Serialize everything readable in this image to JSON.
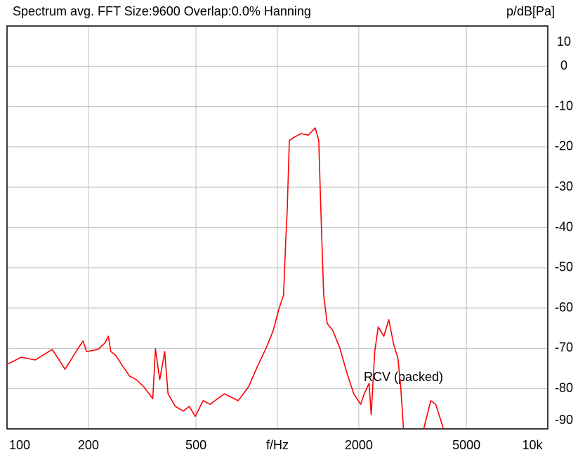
{
  "chart_data": {
    "type": "line",
    "title": "Spectrum avg.  FFT Size:9600  Overlap:0.0%  Hanning",
    "y_label": "p/dB[Pa]",
    "annotation": "RCV (packed)",
    "xscale": "log",
    "grid": true,
    "xlim": [
      100,
      10000
    ],
    "ylim": [
      -90,
      10
    ],
    "xticks": [
      100,
      200,
      500,
      {
        "value": 1000,
        "label": "f/Hz"
      },
      2000,
      5000,
      {
        "value": 10000,
        "label": "10k"
      }
    ],
    "yticks": [
      10,
      0,
      -10,
      -20,
      -30,
      -40,
      -50,
      -60,
      -70,
      -80,
      -90
    ],
    "x": [
      100,
      113,
      127,
      147,
      164,
      182,
      191,
      197,
      217,
      230,
      237,
      242,
      252,
      267,
      284,
      301,
      320,
      346,
      354,
      367,
      383,
      394,
      419,
      449,
      472,
      497,
      531,
      564,
      636,
      716,
      783,
      846,
      909,
      965,
      1012,
      1054,
      1074,
      1087,
      1107,
      1154,
      1225,
      1300,
      1380,
      1422,
      1448,
      1483,
      1528,
      1603,
      1701,
      1805,
      1916,
      2033,
      2095,
      2183,
      2223,
      2291,
      2360,
      2475,
      2582,
      2692,
      2791,
      2858,
      2926,
      3200,
      3476,
      3582,
      3691,
      3849,
      4036,
      4110
    ],
    "series": [
      {
        "color": "#ff0000",
        "values": [
          -74,
          -72.2,
          -72.9,
          -70.3,
          -75.2,
          -70.3,
          -68.2,
          -70.8,
          -70.3,
          -68.7,
          -67,
          -70.8,
          -71.7,
          -74.3,
          -76.9,
          -77.8,
          -79.5,
          -82.5,
          -70.1,
          -77.8,
          -70.8,
          -81.3,
          -84.4,
          -85.6,
          -84.4,
          -86.9,
          -83,
          -83.9,
          -81.3,
          -83,
          -79.5,
          -74.3,
          -69.9,
          -65.6,
          -60.3,
          -56.8,
          -42.9,
          -35.9,
          -18.4,
          -17.6,
          -16.7,
          -17.1,
          -15.3,
          -18.4,
          -35.9,
          -56.8,
          -63.8,
          -65.6,
          -69.9,
          -76,
          -81.3,
          -83.9,
          -81.3,
          -78.7,
          -86.5,
          -70.8,
          -64.7,
          -67,
          -62.9,
          -69,
          -72.5,
          -79.5,
          -90,
          null,
          -90,
          -86.5,
          -83,
          -83.9,
          -88.2,
          -90
        ]
      }
    ]
  }
}
